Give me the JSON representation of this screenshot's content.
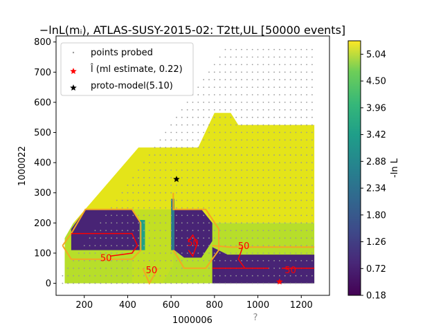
{
  "chart_data": {
    "type": "heatmap",
    "title": "−lnL(mᵢ), ATLAS-SUSY-2015-02: T2tt,UL [50000 events]",
    "xlabel": "1000006",
    "ylabel": "1000022",
    "footnote": "?",
    "xlim": [
      70,
      1330
    ],
    "ylim": [
      -40,
      820
    ],
    "xticks": [
      200,
      400,
      600,
      800,
      1000,
      1200
    ],
    "yticks": [
      0,
      100,
      200,
      300,
      400,
      500,
      600,
      700,
      800
    ],
    "colorbar": {
      "label": "-ln L",
      "min": 0.18,
      "max": 5.31,
      "ticks": [
        "0.18",
        "0.72",
        "1.26",
        "1.80",
        "2.34",
        "2.88",
        "3.42",
        "3.96",
        "4.50",
        "5.04"
      ],
      "colormap": "viridis"
    },
    "legend": {
      "placement": "top-left",
      "entries": [
        {
          "label": "points probed",
          "marker": "dot",
          "color": "#999999"
        },
        {
          "label": "l̂ (ml estimate, 0.22)",
          "marker": "star",
          "color": "#ff0000"
        },
        {
          "label": "proto-model(5.10)",
          "marker": "star",
          "color": "#000000"
        }
      ]
    },
    "ml_estimate": {
      "x": 1100,
      "y": 5,
      "value": 0.22
    },
    "proto_model": {
      "x": 625,
      "y": 345,
      "value": 5.1
    },
    "contour_labels": [
      {
        "text": "50",
        "x": 300,
        "y": 85
      },
      {
        "text": "50",
        "x": 510,
        "y": 45
      },
      {
        "text": "50",
        "x": 700,
        "y": 135
      },
      {
        "text": "50",
        "x": 935,
        "y": 125
      },
      {
        "text": "50",
        "x": 1150,
        "y": 45
      }
    ],
    "high_region": [
      [
        150,
        200
      ],
      [
        450,
        450
      ],
      [
        725,
        450
      ],
      [
        800,
        565
      ],
      [
        875,
        565
      ],
      [
        910,
        525
      ],
      [
        1260,
        525
      ],
      [
        1260,
        200
      ]
    ],
    "low_regions": [
      [
        [
          140,
          110
        ],
        [
          140,
          180
        ],
        [
          205,
          245
        ],
        [
          420,
          245
        ],
        [
          455,
          210
        ],
        [
          455,
          110
        ]
      ],
      [
        [
          615,
          280
        ],
        [
          615,
          245
        ],
        [
          740,
          245
        ],
        [
          790,
          200
        ],
        [
          790,
          140
        ],
        [
          740,
          85
        ],
        [
          660,
          85
        ],
        [
          615,
          110
        ]
      ],
      [
        [
          790,
          120
        ],
        [
          860,
          95
        ],
        [
          1260,
          95
        ],
        [
          1260,
          0
        ],
        [
          790,
          0
        ]
      ]
    ],
    "orange_contours": [
      [
        [
          100,
          125
        ],
        [
          140,
          165
        ],
        [
          205,
          245
        ],
        [
          420,
          245
        ],
        [
          460,
          200
        ],
        [
          460,
          110
        ],
        [
          420,
          80
        ],
        [
          140,
          80
        ],
        [
          100,
          125
        ]
      ],
      [
        [
          610,
          300
        ],
        [
          610,
          245
        ],
        [
          760,
          245
        ],
        [
          820,
          180
        ],
        [
          820,
          110
        ],
        [
          760,
          50
        ],
        [
          660,
          50
        ],
        [
          610,
          110
        ]
      ],
      [
        [
          470,
          50
        ],
        [
          500,
          0
        ],
        [
          540,
          50
        ]
      ],
      [
        [
          790,
          125
        ],
        [
          870,
          120
        ],
        [
          1260,
          120
        ]
      ]
    ],
    "red_contours": [
      [
        [
          140,
          165
        ],
        [
          420,
          165
        ],
        [
          445,
          125
        ],
        [
          420,
          100
        ],
        [
          320,
          90
        ]
      ],
      [
        [
          680,
          140
        ],
        [
          700,
          160
        ],
        [
          720,
          130
        ],
        [
          700,
          90
        ],
        [
          680,
          110
        ]
      ],
      [
        [
          930,
          120
        ],
        [
          910,
          80
        ],
        [
          940,
          50
        ],
        [
          1050,
          50
        ]
      ],
      [
        [
          790,
          50
        ],
        [
          1050,
          50
        ]
      ],
      [
        [
          1110,
          50
        ],
        [
          1260,
          50
        ]
      ]
    ]
  }
}
